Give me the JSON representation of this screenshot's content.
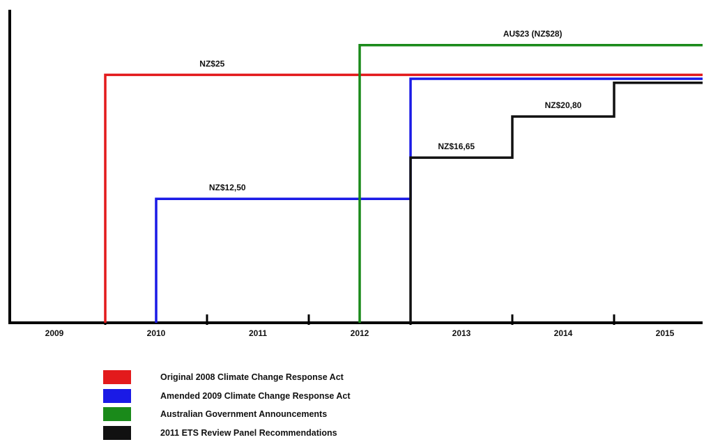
{
  "chart_data": {
    "type": "line",
    "step": true,
    "title": "",
    "xlabel": "",
    "ylabel": "",
    "x_ticks": [
      "2009",
      "2010",
      "2011",
      "2012",
      "2013",
      "2014",
      "2015"
    ],
    "series": [
      {
        "name": "Original 2008 Climate Change Response Act",
        "color": "#e31a1c",
        "points": [
          [
            2009.5,
            0
          ],
          [
            2009.5,
            25
          ],
          [
            2015.5,
            25
          ]
        ],
        "label": "NZ$25",
        "label_at": [
          2010.55,
          25
        ]
      },
      {
        "name": "Amended 2009 Climate Change Response Act",
        "color": "#1a1ae6",
        "points": [
          [
            2010.0,
            0
          ],
          [
            2010.0,
            12.5
          ],
          [
            2012.5,
            12.5
          ],
          [
            2012.5,
            24.6
          ],
          [
            2015.5,
            24.6
          ]
        ],
        "label": "NZ$12,50",
        "label_at": [
          2010.7,
          12.5
        ]
      },
      {
        "name": "Australian Government Announcements",
        "color": "#1a8a1a",
        "points": [
          [
            2012.0,
            0
          ],
          [
            2012.0,
            28
          ],
          [
            2015.5,
            28
          ]
        ],
        "label": "AU$23 (NZ$28)",
        "label_at": [
          2013.7,
          28
        ]
      },
      {
        "name": "2011 ETS Review Panel Recommendations",
        "color": "#111111",
        "points": [
          [
            2012.5,
            0
          ],
          [
            2012.5,
            16.65
          ],
          [
            2013.5,
            16.65
          ],
          [
            2013.5,
            20.8
          ],
          [
            2014.5,
            20.8
          ],
          [
            2014.5,
            24.2
          ],
          [
            2015.5,
            24.2
          ]
        ],
        "label_points": [
          {
            "text": "NZ$16,65",
            "at": [
              2012.95,
              16.65
            ]
          },
          {
            "text": "NZ$20,80",
            "at": [
              2014.0,
              20.8
            ]
          }
        ]
      }
    ],
    "xlim": [
      2008.6,
      2015.55
    ],
    "ylim": [
      0,
      31
    ],
    "grid": false,
    "legend_position": "bottom-left"
  },
  "legend": {
    "items": [
      {
        "label": "Original 2008 Climate Change Response Act",
        "color": "#e31a1c"
      },
      {
        "label": "Amended 2009 Climate Change Response Act",
        "color": "#1a1ae6"
      },
      {
        "label": "Australian Government Announcements",
        "color": "#1a8a1a"
      },
      {
        "label": "2011 ETS Review Panel Recommendations",
        "color": "#111111"
      }
    ]
  }
}
